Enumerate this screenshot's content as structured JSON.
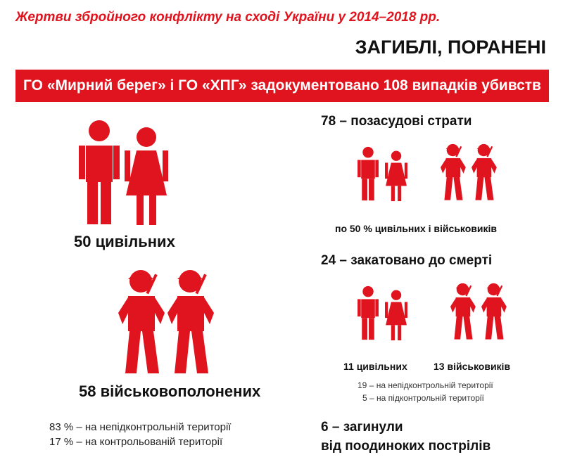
{
  "header": {
    "title": "Жертви збройного конфлікту на сході України у 2014–2018 рр.",
    "section": "ЗАГИБЛІ, ПОРАНЕНІ"
  },
  "banner": {
    "text": "ГО «Мирний берег» і ГО «ХПГ» задокументовано 108 випадків убивств"
  },
  "left": {
    "civilians_label": "50 цивільних",
    "pow_label": "58 військовополонених",
    "territory_notes": [
      "83 % – на непідконтрольній території",
      "17 % – на контрольованій території"
    ]
  },
  "right": {
    "executions": {
      "title": "78 – позасудові страти",
      "note": "по 50 % цивільних і військовиків"
    },
    "tortured": {
      "title": "24 – закатовано до смерті",
      "civilians": "11 цивільних",
      "military": "13 військовиків",
      "notes": [
        "19 – на непідконтрольній території",
        "5 – на підконтрольній території"
      ]
    },
    "snipers": {
      "line1": "6 – загинули",
      "line2": "від поодиноких пострілів"
    }
  },
  "colors": {
    "accent": "#e0141e",
    "text": "#111111"
  },
  "icons": [
    "man-icon",
    "woman-icon",
    "soldier-icon"
  ]
}
